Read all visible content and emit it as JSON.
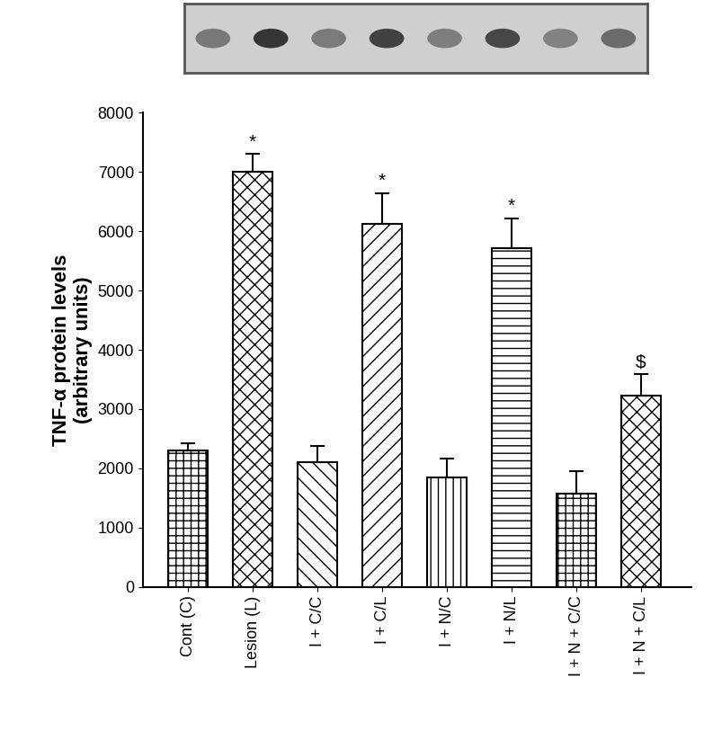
{
  "chart_data": {
    "type": "bar",
    "y_label": "TNF-α protein levels\n(arbitrary units)",
    "categories": [
      "Cont (C)",
      "Lesion (L)",
      "I + C/C",
      "I + C/L",
      "I + N/C",
      "I + N/L",
      "I + N + C/C",
      "I + N + C/L"
    ],
    "values": [
      2300,
      7000,
      2100,
      6120,
      1850,
      5720,
      1580,
      3220
    ],
    "error": [
      120,
      300,
      280,
      520,
      320,
      500,
      370,
      370
    ],
    "significance": [
      null,
      "*",
      null,
      "*",
      null,
      "*",
      null,
      "$"
    ],
    "color": "#000000",
    "ylim": [
      0,
      8000
    ],
    "yticks": [
      0,
      1000,
      2000,
      3000,
      4000,
      5000,
      6000,
      7000,
      8000
    ],
    "grid": false
  }
}
